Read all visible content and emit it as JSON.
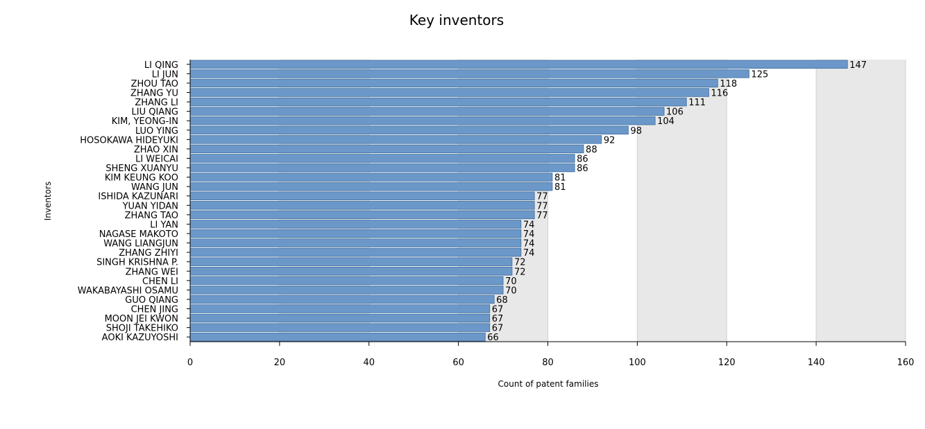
{
  "chart_data": {
    "type": "bar",
    "orientation": "horizontal",
    "title": "Key inventors",
    "xlabel": "Count of patent families",
    "ylabel": "Inventors",
    "xlim": [
      0,
      160
    ],
    "xticks": [
      0,
      20,
      40,
      60,
      80,
      100,
      120,
      140,
      160
    ],
    "grid": true,
    "categories": [
      "LI QING",
      "LI JUN",
      "ZHOU TAO",
      "ZHANG YU",
      "ZHANG LI",
      "LIU QIANG",
      "KIM, YEONG-IN",
      "LUO YING",
      "HOSOKAWA HIDEYUKI",
      "ZHAO XIN",
      "LI WEICAI",
      "SHENG XUANYU",
      "KIM KEUNG KOO",
      "WANG JUN",
      "ISHIDA KAZUNARI",
      "YUAN YIDAN",
      "ZHANG TAO",
      "LI YAN",
      "NAGASE MAKOTO",
      "WANG LIANGJUN",
      "ZHANG ZHIYI",
      "SINGH KRISHNA P.",
      "ZHANG WEI",
      "CHEN LI",
      "WAKABAYASHI OSAMU",
      "GUO QIANG",
      "CHEN JING",
      "MOON JEI KWON",
      "SHOJI TAKEHIKO",
      "AOKI KAZUYOSHI"
    ],
    "values": [
      147,
      125,
      118,
      116,
      111,
      106,
      104,
      98,
      92,
      88,
      86,
      86,
      81,
      81,
      77,
      77,
      77,
      74,
      74,
      74,
      74,
      72,
      72,
      70,
      70,
      68,
      67,
      67,
      67,
      66
    ],
    "colors": {
      "bar": "#6b98c9",
      "bar_stroke": "#3f6d9e",
      "band": "#e8e8e8",
      "grid": "#d0d0d0",
      "axis": "#000000"
    }
  }
}
